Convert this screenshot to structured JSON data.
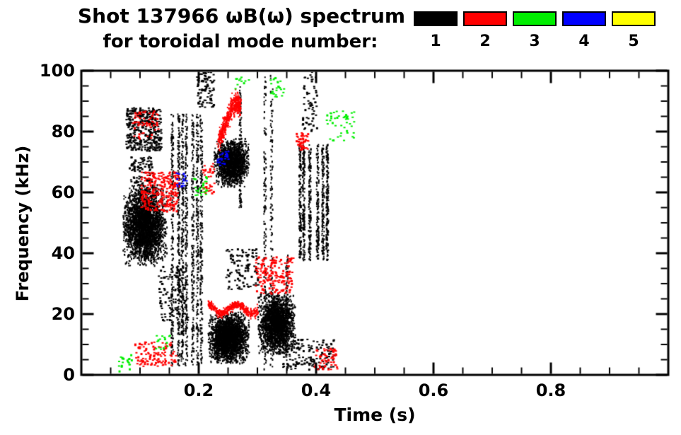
{
  "header": {
    "title_line1": "Shot 137966 ωB(ω) spectrum",
    "title_line2": "for toroidal mode number:"
  },
  "legend": {
    "modes": [
      {
        "label": "1",
        "color": "#000000"
      },
      {
        "label": "2",
        "color": "#ff0000"
      },
      {
        "label": "3",
        "color": "#00ee00"
      },
      {
        "label": "4",
        "color": "#0000ff"
      },
      {
        "label": "5",
        "color": "#ffff00"
      }
    ]
  },
  "chart_data": {
    "type": "scatter",
    "title": "Shot 137966 ωB(ω) spectrum for toroidal mode number: 1 2 3 4 5",
    "xlabel": "Time (s)",
    "ylabel": "Frequency (kHz)",
    "xlim": [
      0.0,
      1.0
    ],
    "ylim": [
      0,
      100
    ],
    "xticks_major": [
      0.2,
      0.4,
      0.6,
      0.8
    ],
    "xtick_labels": [
      "0.2",
      "0.4",
      "0.6",
      "0.8"
    ],
    "xminor_step": 0.05,
    "yticks_major": [
      0,
      20,
      40,
      60,
      80,
      100
    ],
    "ytick_labels": [
      "0",
      "20",
      "40",
      "60",
      "80",
      "100"
    ],
    "yminor_step": 5,
    "grid": false,
    "legend_position": "top-right",
    "series": [
      {
        "name": "n=1",
        "color": "#000000",
        "clusters": [
          {
            "shape": "blob",
            "t": [
              0.07,
              0.145
            ],
            "f": [
              36,
              63
            ],
            "count": 3000
          },
          {
            "shape": "speckle",
            "t": [
              0.075,
              0.135
            ],
            "f": [
              74,
              88
            ],
            "count": 350
          },
          {
            "shape": "speckle",
            "t": [
              0.08,
              0.12
            ],
            "f": [
              63,
              72
            ],
            "count": 90
          },
          {
            "shape": "vstreaks",
            "t": [
              0.15,
              0.21
            ],
            "f": [
              3,
              86
            ],
            "streaks": 7,
            "count": 1400
          },
          {
            "shape": "blob",
            "t": [
              0.225,
              0.285
            ],
            "f": [
              62,
              78
            ],
            "count": 1600
          },
          {
            "shape": "blob",
            "t": [
              0.215,
              0.285
            ],
            "f": [
              4,
              21
            ],
            "count": 2600
          },
          {
            "shape": "blob",
            "t": [
              0.3,
              0.365
            ],
            "f": [
              7,
              27
            ],
            "count": 2200
          },
          {
            "shape": "vstreaks",
            "t": [
              0.305,
              0.325
            ],
            "f": [
              2,
              99
            ],
            "streaks": 2,
            "count": 260
          },
          {
            "shape": "vstreaks",
            "t": [
              0.262,
              0.272
            ],
            "f": [
              55,
              95
            ],
            "streaks": 1,
            "count": 120
          },
          {
            "shape": "vstreaks",
            "t": [
              0.345,
              0.355
            ],
            "f": [
              2,
              40
            ],
            "streaks": 1,
            "count": 100
          },
          {
            "shape": "vstreaks",
            "t": [
              0.365,
              0.425
            ],
            "f": [
              38,
              76
            ],
            "streaks": 6,
            "count": 900
          },
          {
            "shape": "speckle",
            "t": [
              0.195,
              0.225
            ],
            "f": [
              88,
              100
            ],
            "count": 90
          },
          {
            "shape": "speckle",
            "t": [
              0.13,
              0.18
            ],
            "f": [
              18,
              36
            ],
            "count": 120
          },
          {
            "shape": "speckle",
            "t": [
              0.245,
              0.3
            ],
            "f": [
              28,
              42
            ],
            "count": 100
          },
          {
            "shape": "speckle",
            "t": [
              0.34,
              0.43
            ],
            "f": [
              2,
              12
            ],
            "count": 150
          },
          {
            "shape": "speckle",
            "t": [
              0.375,
              0.4
            ],
            "f": [
              80,
              100
            ],
            "count": 60
          }
        ]
      },
      {
        "name": "n=2",
        "color": "#ff0000",
        "clusters": [
          {
            "shape": "arc",
            "path": [
              [
                0.233,
                77
              ],
              [
                0.243,
                82
              ],
              [
                0.253,
                87
              ],
              [
                0.263,
                90
              ],
              [
                0.27,
                88
              ]
            ],
            "width": 1.5,
            "count": 450
          },
          {
            "shape": "speckle",
            "t": [
              0.1,
              0.165
            ],
            "f": [
              54,
              67
            ],
            "count": 260
          },
          {
            "shape": "hband",
            "t": [
              0.215,
              0.3
            ],
            "f": [
              20,
              24
            ],
            "count": 400
          },
          {
            "shape": "speckle",
            "t": [
              0.295,
              0.36
            ],
            "f": [
              27,
              39
            ],
            "count": 180
          },
          {
            "shape": "speckle",
            "t": [
              0.085,
              0.13
            ],
            "f": [
              78,
              87
            ],
            "count": 60
          },
          {
            "shape": "speckle",
            "t": [
              0.365,
              0.385
            ],
            "f": [
              74,
              80
            ],
            "count": 50
          },
          {
            "shape": "speckle",
            "t": [
              0.09,
              0.16
            ],
            "f": [
              3,
              11
            ],
            "count": 110
          },
          {
            "shape": "speckle",
            "t": [
              0.395,
              0.435
            ],
            "f": [
              2,
              9
            ],
            "count": 60
          },
          {
            "shape": "speckle",
            "t": [
              0.205,
              0.225
            ],
            "f": [
              60,
              70
            ],
            "count": 40
          }
        ]
      },
      {
        "name": "n=3",
        "color": "#00ee00",
        "clusters": [
          {
            "shape": "speckle",
            "t": [
              0.32,
              0.345
            ],
            "f": [
              91,
              98
            ],
            "count": 25
          },
          {
            "shape": "speckle",
            "t": [
              0.415,
              0.465
            ],
            "f": [
              77,
              87
            ],
            "count": 45
          },
          {
            "shape": "speckle",
            "t": [
              0.06,
              0.085
            ],
            "f": [
              1,
              7
            ],
            "count": 20
          },
          {
            "shape": "speckle",
            "t": [
              0.19,
              0.215
            ],
            "f": [
              59,
              66
            ],
            "count": 25
          },
          {
            "shape": "speckle",
            "t": [
              0.26,
              0.285
            ],
            "f": [
              94,
              99
            ],
            "count": 12
          },
          {
            "shape": "speckle",
            "t": [
              0.12,
              0.15
            ],
            "f": [
              8,
              14
            ],
            "count": 15
          }
        ]
      },
      {
        "name": "n=4",
        "color": "#0000ff",
        "clusters": [
          {
            "shape": "speckle",
            "t": [
              0.23,
              0.25
            ],
            "f": [
              69,
              74
            ],
            "count": 25
          },
          {
            "shape": "speckle",
            "t": [
              0.16,
              0.178
            ],
            "f": [
              62,
              67
            ],
            "count": 18
          }
        ]
      },
      {
        "name": "n=5",
        "color": "#ffff00",
        "clusters": []
      }
    ]
  }
}
